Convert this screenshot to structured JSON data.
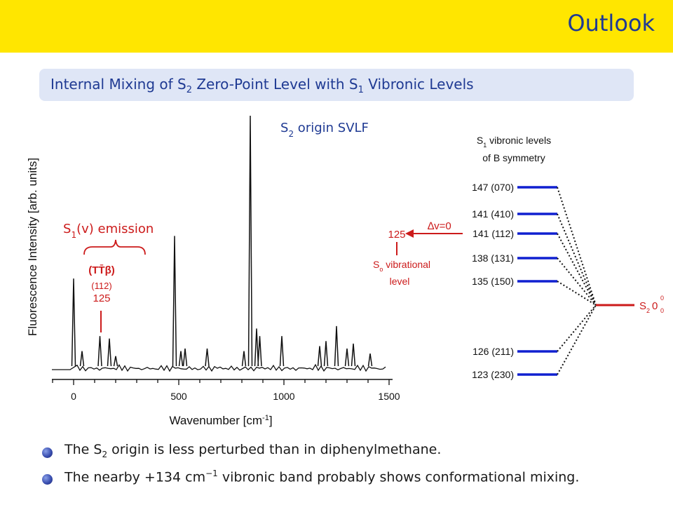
{
  "header": {
    "title": "Outlook",
    "band_color": "#ffe600"
  },
  "subtitle": {
    "prefix": "Internal Mixing of S",
    "sub1": "2",
    "middle": " Zero-Point Level with S",
    "sub2": "1",
    "suffix": " Vibronic Levels"
  },
  "spectrum": {
    "ylabel": "Fluorescence Intensity [arb. units]",
    "xlabel": "Wavenumber [cm",
    "xlabel_sup": "-1",
    "xlabel_end": "]",
    "ticks": [
      "0",
      "500",
      "1000",
      "1500"
    ],
    "s2_label_prefix": "S",
    "s2_label_sub": "2",
    "s2_label_suffix": " origin SVLF",
    "s1_label_prefix": "S",
    "s1_label_sub": "1",
    "s1_label_suffix": "(v) emission",
    "peak_assign_1": "(TT̄β)",
    "peak_assign_2": "(112)",
    "peak_assign_3": "125"
  },
  "chart_data": {
    "type": "line",
    "xlabel": "Wavenumber [cm-1]",
    "ylabel": "Fluorescence Intensity [arb. units]",
    "xlim": [
      -100,
      1500
    ],
    "x": [
      0,
      40,
      125,
      170,
      200,
      480,
      510,
      530,
      635,
      810,
      840,
      870,
      885,
      990,
      1170,
      1200,
      1250,
      1300,
      1330,
      1410
    ],
    "y": [
      0.35,
      0.06,
      0.12,
      0.11,
      0.04,
      0.52,
      0.06,
      0.07,
      0.07,
      0.06,
      1.0,
      0.15,
      0.12,
      0.12,
      0.08,
      0.1,
      0.16,
      0.07,
      0.09,
      0.05
    ]
  },
  "level_diagram": {
    "title_line1_prefix": "S",
    "title_line1_sub": "1",
    "title_line1_suffix": " vibronic levels",
    "title_line2": "of B symmetry",
    "levels": [
      "147 (070)",
      "141 (410)",
      "141 (112)",
      "138 (131)",
      "135 (150)",
      "126 (211)",
      "123 (230)"
    ],
    "s2_prefix": "S",
    "s2_sub": "2",
    "s2_zero": "0",
    "s2_sup": "0",
    "s2_sub2": "0",
    "delta_label": "∆v=0",
    "s0_value": "125",
    "s0_line1_prefix": "S",
    "s0_line1_sub": "o",
    "s0_line1_suffix": " vibrational",
    "s0_line2": "level"
  },
  "bullets": [
    {
      "prefix": "The S",
      "sub": "2",
      "suffix": " origin is less perturbed than in diphenylmethane."
    },
    {
      "prefix": "The nearby +134 cm",
      "sup": "−1",
      "suffix": " vibronic band probably shows conformational mixing."
    }
  ]
}
